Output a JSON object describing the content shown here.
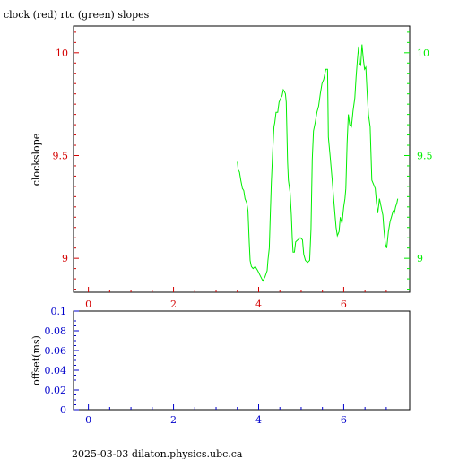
{
  "title": "clock (red) rtc (green) slopes",
  "footer": "2025-03-03  dilaton.physics.ubc.ca",
  "colors": {
    "clock": "#d40000",
    "rtc": "#00ee00",
    "offset": "#0000cc",
    "axes": "#000000"
  },
  "chart_data": [
    {
      "type": "line",
      "ylabel": "clockslope",
      "xlim": [
        -0.35,
        7.55
      ],
      "ylim": [
        8.835,
        10.13
      ],
      "x_ticks": [
        0,
        2,
        4,
        6
      ],
      "x_tick_labels": [
        "0",
        "2",
        "4",
        "6"
      ],
      "y_ticks": [
        9,
        9.5,
        10
      ],
      "y_tick_labels_left": [
        "9",
        "9.5",
        "10"
      ],
      "y_tick_labels_right": [
        "9",
        "9.5",
        "10"
      ],
      "grid": false,
      "series": [
        {
          "color": "rtc",
          "points": [
            [
              3.5,
              9.47
            ],
            [
              3.52,
              9.43
            ],
            [
              3.55,
              9.42
            ],
            [
              3.58,
              9.38
            ],
            [
              3.62,
              9.34
            ],
            [
              3.65,
              9.33
            ],
            [
              3.68,
              9.29
            ],
            [
              3.72,
              9.27
            ],
            [
              3.75,
              9.23
            ],
            [
              3.78,
              9.08
            ],
            [
              3.8,
              8.99
            ],
            [
              3.83,
              8.96
            ],
            [
              3.87,
              8.95
            ],
            [
              3.92,
              8.96
            ],
            [
              3.98,
              8.94
            ],
            [
              4.05,
              8.91
            ],
            [
              4.1,
              8.89
            ],
            [
              4.15,
              8.91
            ],
            [
              4.2,
              8.94
            ],
            [
              4.22,
              8.99
            ],
            [
              4.25,
              9.05
            ],
            [
              4.27,
              9.18
            ],
            [
              4.3,
              9.37
            ],
            [
              4.33,
              9.52
            ],
            [
              4.36,
              9.64
            ],
            [
              4.38,
              9.66
            ],
            [
              4.41,
              9.71
            ],
            [
              4.45,
              9.71
            ],
            [
              4.48,
              9.76
            ],
            [
              4.52,
              9.78
            ],
            [
              4.55,
              9.79
            ],
            [
              4.58,
              9.82
            ],
            [
              4.61,
              9.81
            ],
            [
              4.63,
              9.8
            ],
            [
              4.65,
              9.76
            ],
            [
              4.68,
              9.47
            ],
            [
              4.7,
              9.38
            ],
            [
              4.74,
              9.32
            ],
            [
              4.77,
              9.21
            ],
            [
              4.79,
              9.1
            ],
            [
              4.81,
              9.03
            ],
            [
              4.84,
              9.03
            ],
            [
              4.87,
              9.08
            ],
            [
              4.92,
              9.09
            ],
            [
              4.98,
              9.1
            ],
            [
              5.03,
              9.09
            ],
            [
              5.06,
              9.02
            ],
            [
              5.1,
              8.99
            ],
            [
              5.15,
              8.98
            ],
            [
              5.2,
              8.99
            ],
            [
              5.23,
              9.14
            ],
            [
              5.26,
              9.48
            ],
            [
              5.29,
              9.62
            ],
            [
              5.33,
              9.66
            ],
            [
              5.37,
              9.71
            ],
            [
              5.41,
              9.74
            ],
            [
              5.45,
              9.8
            ],
            [
              5.49,
              9.85
            ],
            [
              5.53,
              9.87
            ],
            [
              5.56,
              9.9
            ],
            [
              5.58,
              9.92
            ],
            [
              5.62,
              9.92
            ],
            [
              5.64,
              9.59
            ],
            [
              5.68,
              9.5
            ],
            [
              5.73,
              9.38
            ],
            [
              5.76,
              9.3
            ],
            [
              5.79,
              9.22
            ],
            [
              5.82,
              9.15
            ],
            [
              5.85,
              9.11
            ],
            [
              5.89,
              9.13
            ],
            [
              5.92,
              9.2
            ],
            [
              5.96,
              9.17
            ],
            [
              6.0,
              9.25
            ],
            [
              6.03,
              9.29
            ],
            [
              6.05,
              9.34
            ],
            [
              6.08,
              9.56
            ],
            [
              6.11,
              9.7
            ],
            [
              6.14,
              9.65
            ],
            [
              6.18,
              9.64
            ],
            [
              6.22,
              9.72
            ],
            [
              6.26,
              9.78
            ],
            [
              6.29,
              9.88
            ],
            [
              6.32,
              9.96
            ],
            [
              6.35,
              10.03
            ],
            [
              6.37,
              9.95
            ],
            [
              6.4,
              9.94
            ],
            [
              6.43,
              10.04
            ],
            [
              6.46,
              9.97
            ],
            [
              6.49,
              9.92
            ],
            [
              6.52,
              9.93
            ],
            [
              6.55,
              9.81
            ],
            [
              6.58,
              9.7
            ],
            [
              6.62,
              9.64
            ],
            [
              6.66,
              9.38
            ],
            [
              6.7,
              9.36
            ],
            [
              6.74,
              9.34
            ],
            [
              6.77,
              9.27
            ],
            [
              6.8,
              9.22
            ],
            [
              6.84,
              9.29
            ],
            [
              6.88,
              9.25
            ],
            [
              6.92,
              9.21
            ],
            [
              6.95,
              9.13
            ],
            [
              6.98,
              9.07
            ],
            [
              7.01,
              9.05
            ],
            [
              7.05,
              9.13
            ],
            [
              7.09,
              9.18
            ],
            [
              7.12,
              9.2
            ],
            [
              7.16,
              9.23
            ],
            [
              7.19,
              9.22
            ],
            [
              7.22,
              9.25
            ],
            [
              7.25,
              9.27
            ],
            [
              7.27,
              9.29
            ]
          ]
        }
      ]
    },
    {
      "type": "line",
      "ylabel": "offset(ms)",
      "xlim": [
        -0.35,
        7.55
      ],
      "ylim": [
        0,
        0.1
      ],
      "x_ticks": [
        0,
        2,
        4,
        6
      ],
      "x_tick_labels": [
        "0",
        "2",
        "4",
        "6"
      ],
      "y_ticks": [
        0,
        0.02,
        0.04,
        0.06,
        0.08,
        0.1
      ],
      "y_tick_labels": [
        "0",
        "0.02",
        "0.04",
        "0.06",
        "0.08",
        "0.1"
      ],
      "grid": false,
      "series": []
    }
  ]
}
